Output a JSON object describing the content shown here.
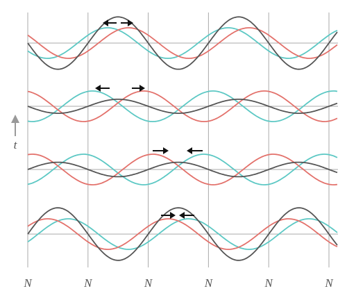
{
  "time_label": "t",
  "node_labels": [
    "N",
    "N",
    "N",
    "N",
    "N",
    "N"
  ]
}
